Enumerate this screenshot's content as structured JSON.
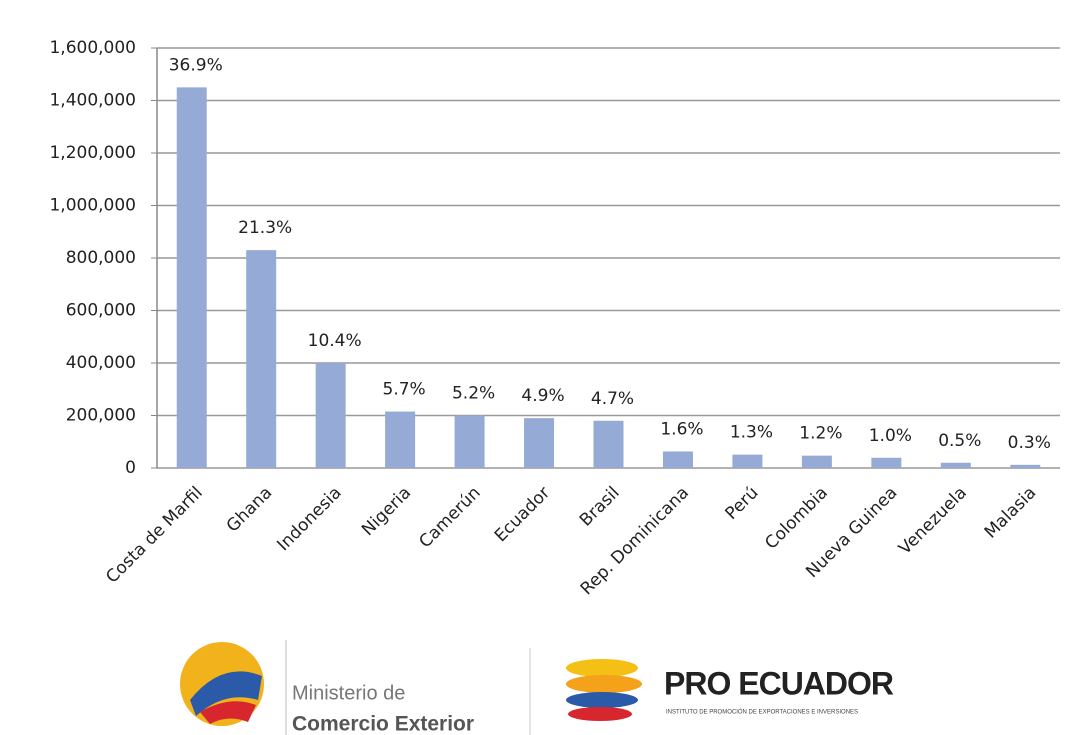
{
  "chart_data": {
    "type": "bar",
    "categories": [
      "Costa de Marfil",
      "Ghana",
      "Indonesia",
      "Nigeria",
      "Camerún",
      "Ecuador",
      "Brasil",
      "Rep. Dominicana",
      "Perú",
      "Colombia",
      "Nueva Guinea",
      "Venezuela",
      "Malasia"
    ],
    "values": [
      1450000,
      830000,
      400000,
      215000,
      200000,
      190000,
      180000,
      63000,
      51000,
      47000,
      39000,
      20000,
      12000
    ],
    "annotations": [
      "36.9%",
      "21.3%",
      "10.4%",
      "5.7%",
      "5.2%",
      "4.9%",
      "4.7%",
      "1.6%",
      "1.3%",
      "1.2%",
      "1.0%",
      "0.5%",
      "0.3%"
    ],
    "color": "#95abd6",
    "ylim": [
      0,
      1600000
    ],
    "yticks": [
      0,
      {
        "value": 200000,
        "label": "200,000"
      },
      {
        "value": 400000,
        "label": "400,000"
      },
      {
        "value": 600000,
        "label": "600,000"
      },
      {
        "value": 800000,
        "label": "800,000"
      },
      {
        "value": 1000000,
        "label": "1,000,000"
      },
      {
        "value": 1200000,
        "label": "1,200,000"
      },
      {
        "value": 1400000,
        "label": "1,400,000"
      },
      {
        "value": 1600000,
        "label": "1,600,000"
      }
    ],
    "grid": true
  },
  "logos": {
    "ministry_line1": "Ministerio de",
    "ministry_line2": "Comercio Exterior",
    "pro_ecuador": "PRO ECUADOR",
    "pro_ecuador_sub": "INSTITUTO DE PROMOCIÓN DE EXPORTACIONES E INVERSIONES"
  }
}
